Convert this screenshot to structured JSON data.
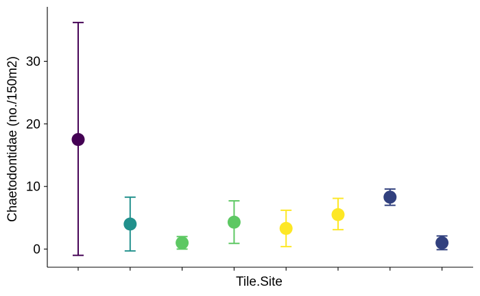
{
  "chart_data": {
    "type": "scatter",
    "title": "",
    "xlabel": "Tile.Site",
    "ylabel": "Chaetodontidae (no./150m2)",
    "ylim": [
      -2.9,
      38.7
    ],
    "yticks": [
      0,
      10,
      20,
      30
    ],
    "grid": false,
    "legend": "none",
    "points": [
      {
        "x": 1,
        "y": 17.5,
        "ymin": -1.0,
        "ymax": 36.2,
        "color": "#440154"
      },
      {
        "x": 2,
        "y": 4.0,
        "ymin": -0.3,
        "ymax": 8.3,
        "color": "#21908C"
      },
      {
        "x": 3,
        "y": 1.0,
        "ymin": 0.0,
        "ymax": 2.0,
        "color": "#5DC863"
      },
      {
        "x": 4,
        "y": 4.3,
        "ymin": 0.9,
        "ymax": 7.7,
        "color": "#5DC863"
      },
      {
        "x": 5,
        "y": 3.3,
        "ymin": 0.4,
        "ymax": 6.2,
        "color": "#FDE725"
      },
      {
        "x": 6,
        "y": 5.5,
        "ymin": 3.1,
        "ymax": 8.1,
        "color": "#FDE725"
      },
      {
        "x": 7,
        "y": 8.3,
        "ymin": 7.0,
        "ymax": 9.6,
        "color": "#31407E"
      },
      {
        "x": 8,
        "y": 1.0,
        "ymin": -0.1,
        "ymax": 2.1,
        "color": "#31407E"
      }
    ]
  }
}
